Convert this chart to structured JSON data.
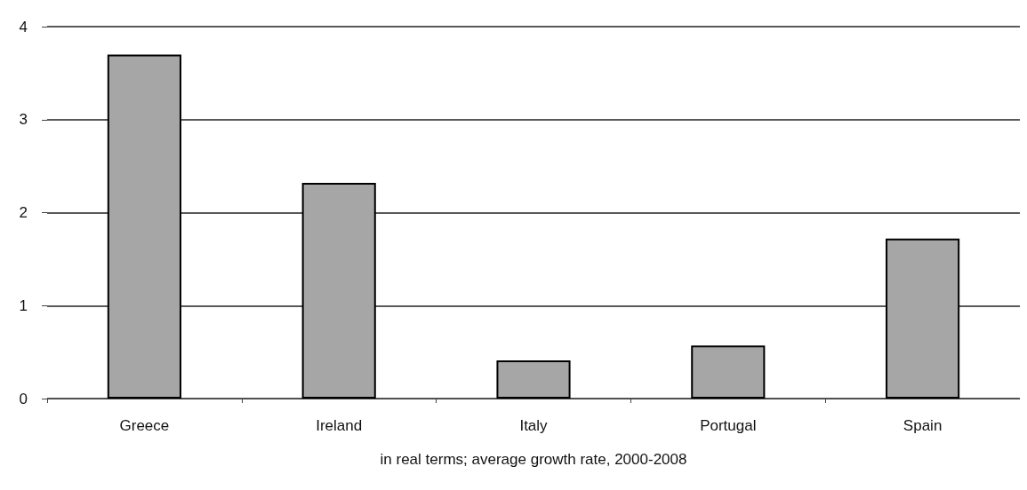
{
  "chart_data": {
    "type": "bar",
    "xlabel": "in real terms; average growth rate, 2000-2008",
    "categories": [
      "Greece",
      "Ireland",
      "Italy",
      "Portugal",
      "Spain"
    ],
    "values": [
      3.7,
      2.32,
      0.41,
      0.57,
      1.72
    ],
    "color": "#a6a6a6",
    "ylim": [
      0,
      4
    ],
    "yticks": [
      0,
      1,
      2,
      3,
      4
    ],
    "grid": "y"
  }
}
